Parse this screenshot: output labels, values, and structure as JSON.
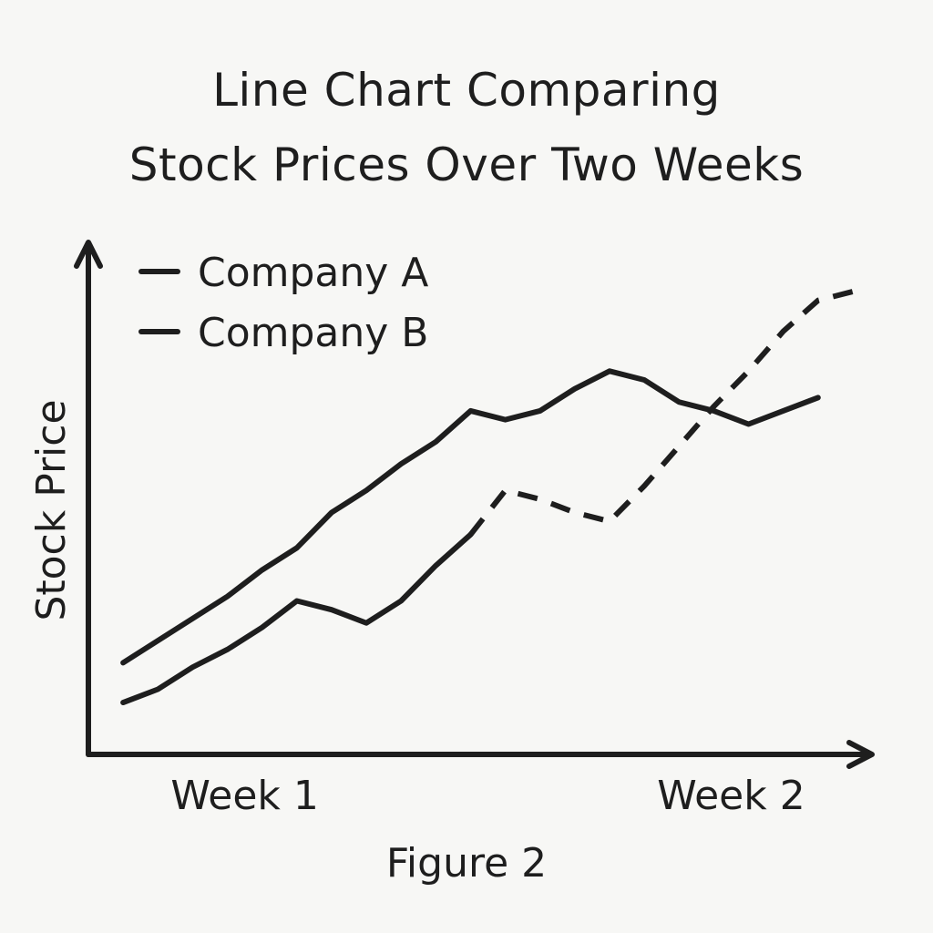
{
  "chart_data": {
    "type": "line",
    "title": [
      "Line Chart Comparing",
      "Stock Prices Over Two Weeks"
    ],
    "caption": "Figure 2",
    "ylabel": "Stock Price",
    "xlabel": "",
    "x": [
      1,
      2,
      3,
      4,
      5,
      6,
      7,
      8,
      9,
      10,
      11,
      12,
      13,
      14,
      15,
      16,
      17,
      18,
      19,
      20,
      21,
      22
    ],
    "x_ticks": [
      {
        "x": 4.5,
        "label": "Week 1"
      },
      {
        "x": 18.5,
        "label": "Week 2"
      }
    ],
    "xlim": [
      0,
      22.5
    ],
    "ylim": [
      0,
      100
    ],
    "grid": false,
    "legend_position": "top-left",
    "series": [
      {
        "name": "Company A",
        "line_style": "solid",
        "values": [
          16,
          21,
          26,
          31,
          37,
          42,
          50,
          55,
          61,
          66,
          73,
          71,
          73,
          78,
          82,
          80,
          75,
          73,
          70,
          73,
          76,
          null
        ]
      },
      {
        "name": "Company B",
        "line_style": "mixed",
        "values": [
          7,
          10,
          15,
          19,
          24,
          30,
          28,
          25,
          30,
          38,
          45,
          55,
          53,
          50,
          48,
          56,
          65,
          74,
          82,
          91,
          98,
          100
        ],
        "dashed_from_index": 10
      }
    ],
    "colors": {
      "ink": "#1e1e1e",
      "background": "#f7f7f5"
    }
  }
}
